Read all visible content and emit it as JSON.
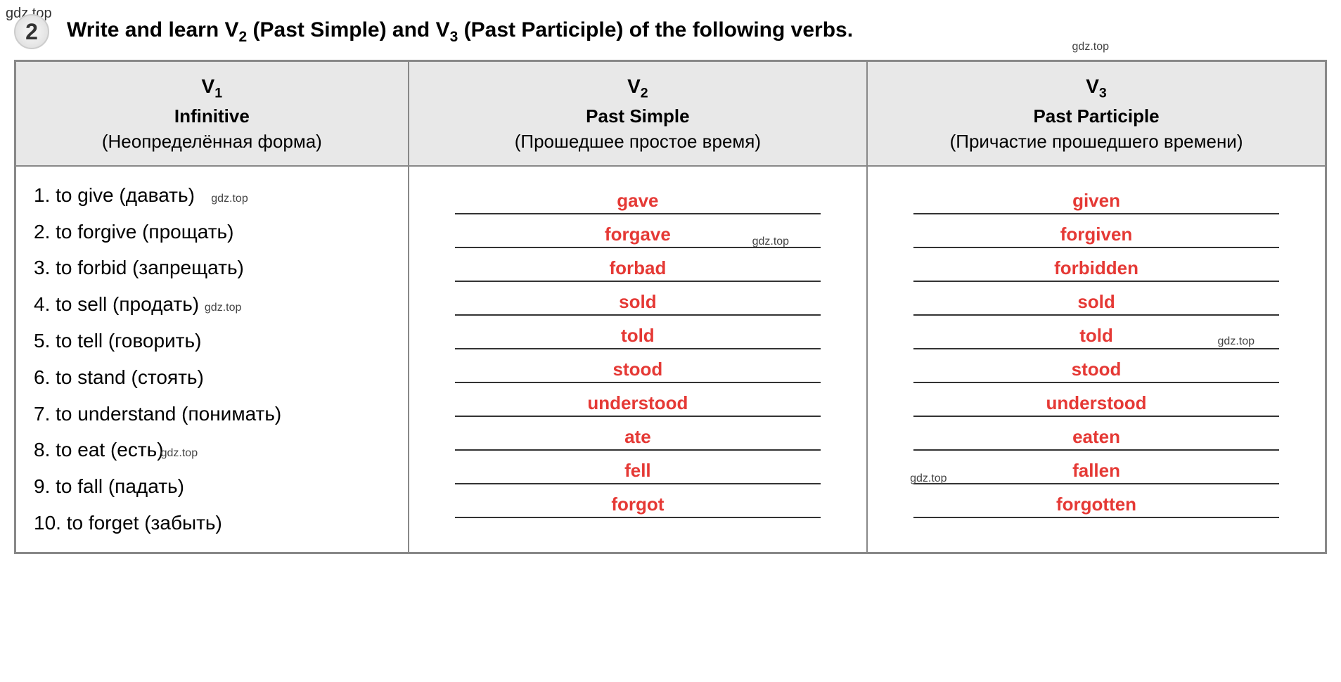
{
  "watermark": "gdz.top",
  "exercise_number": "2",
  "title": "Write and learn V₂ (Past Simple) and V₃ (Past Participle) of the following verbs.",
  "headers": {
    "v1": {
      "symbol": "V₁",
      "name": "Infinitive",
      "translation": "(Неопределённая форма)"
    },
    "v2": {
      "symbol": "V₂",
      "name": "Past Simple",
      "translation": "(Прошедшее простое время)"
    },
    "v3": {
      "symbol": "V₃",
      "name": "Past Participle",
      "translation": "(Причастие прошедшего времени)"
    }
  },
  "verbs": [
    {
      "num": "1.",
      "inf": "to give",
      "trans": "(давать)",
      "v2": "gave",
      "v3": "given"
    },
    {
      "num": "2.",
      "inf": "to forgive",
      "trans": "(прощать)",
      "v2": "forgave",
      "v3": "forgiven"
    },
    {
      "num": "3.",
      "inf": "to forbid",
      "trans": "(запрещать)",
      "v2": "forbad",
      "v3": "forbidden"
    },
    {
      "num": "4.",
      "inf": "to sell",
      "trans": "(продать)",
      "v2": "sold",
      "v3": "sold"
    },
    {
      "num": "5.",
      "inf": "to tell",
      "trans": "(говорить)",
      "v2": "told",
      "v3": "told"
    },
    {
      "num": "6.",
      "inf": "to stand",
      "trans": "(стоять)",
      "v2": "stood",
      "v3": "stood"
    },
    {
      "num": "7.",
      "inf": "to understand",
      "trans": "(понимать)",
      "v2": "understood",
      "v3": "understood"
    },
    {
      "num": "8.",
      "inf": "to eat",
      "trans": "(есть)",
      "v2": "ate",
      "v3": "eaten"
    },
    {
      "num": "9.",
      "inf": "to fall",
      "trans": "(падать)",
      "v2": "fell",
      "v3": "fallen"
    },
    {
      "num": "10.",
      "inf": "to forget",
      "trans": "(забыть)",
      "v2": "forgot",
      "v3": "forgotten"
    }
  ],
  "colors": {
    "answer_color": "#e53935",
    "text_color": "#000000",
    "border_color": "#888888",
    "header_bg": "#e8e8e8"
  }
}
